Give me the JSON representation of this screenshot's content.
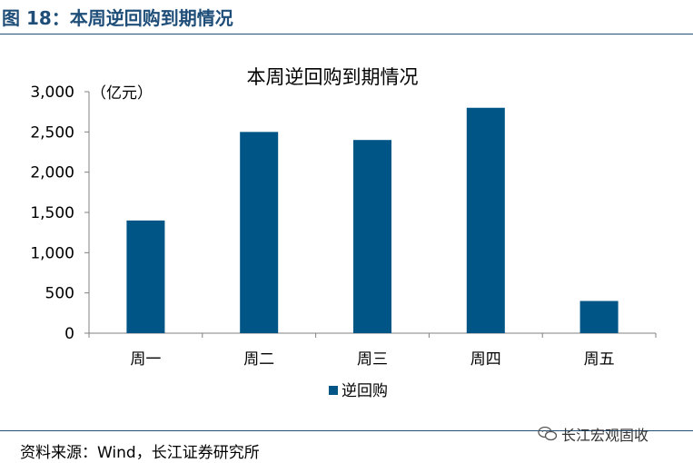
{
  "figure": {
    "caption": "图 18：本周逆回购到期情况",
    "source": "资料来源：Wind，长江证券研究所",
    "watermark": "长江宏观固收",
    "watermark_icon": "wechat-icon"
  },
  "chart_data": {
    "type": "bar",
    "title": "本周逆回购到期情况",
    "unit_label": "（亿元）",
    "categories": [
      "周一",
      "周二",
      "周三",
      "周四",
      "周五"
    ],
    "series": [
      {
        "name": "逆回购",
        "values": [
          1400,
          2500,
          2400,
          2800,
          400
        ],
        "color": "#005587"
      }
    ],
    "ylim": [
      0,
      3000
    ],
    "yticks": [
      0,
      500,
      1000,
      1500,
      2000,
      2500,
      3000
    ],
    "ytick_labels": [
      "0",
      "500",
      "1,000",
      "1,500",
      "2,000",
      "2,500",
      "3,000"
    ],
    "grid": false,
    "legend_position": "bottom"
  }
}
